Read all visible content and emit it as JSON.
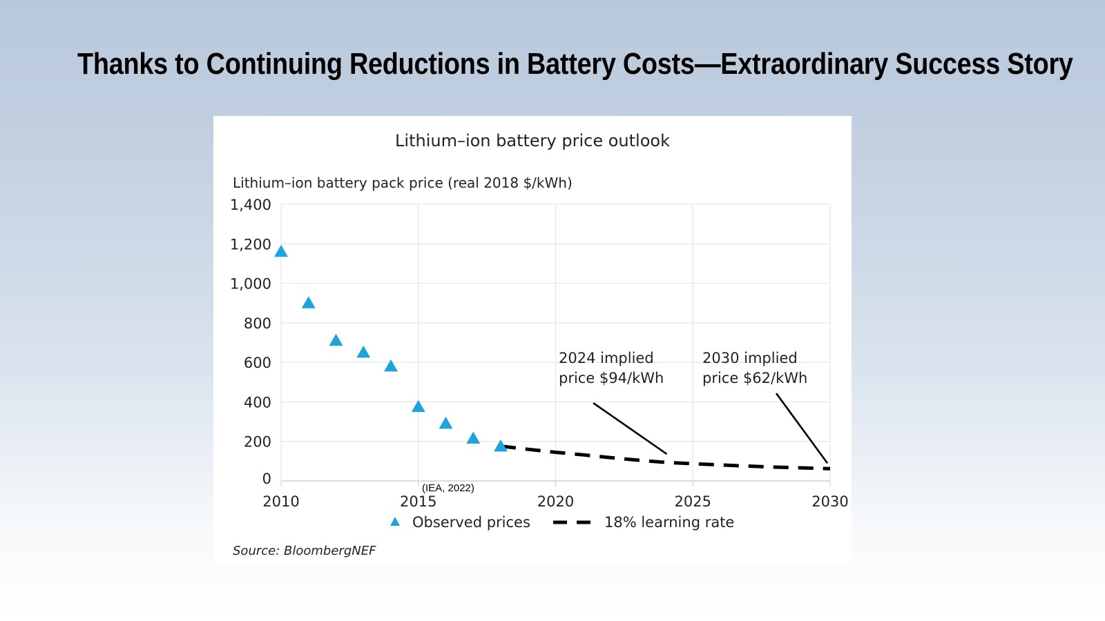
{
  "slide": {
    "title": "Thanks to Continuing Reductions in Battery Costs—Extraordinary Success Story",
    "citation": "(IEA, 2022)"
  },
  "chart_data": {
    "type": "scatter",
    "title": "Lithium–ion battery price outlook",
    "ylabel": "Lithium–ion battery pack price (real 2018 $/kWh)",
    "xlabel": "",
    "xlim": [
      2010,
      2030
    ],
    "ylim": [
      0,
      1400
    ],
    "x_ticks": [
      2010,
      2015,
      2020,
      2025,
      2030
    ],
    "x_tick_labels": [
      "2010",
      "2015",
      "2020",
      "2025",
      "2030"
    ],
    "y_ticks": [
      0,
      200,
      400,
      600,
      800,
      1000,
      1200,
      1400
    ],
    "y_tick_labels": [
      "0",
      "200",
      "400",
      "600",
      "800",
      "1,000",
      "1,200",
      "1,400"
    ],
    "grid": true,
    "legend_position": "bottom",
    "series": [
      {
        "name": "Observed prices",
        "type": "scatter",
        "marker": "triangle",
        "color": "#1fa3dc",
        "x": [
          2010,
          2011,
          2012,
          2013,
          2014,
          2015,
          2016,
          2017,
          2018
        ],
        "values": [
          1160,
          900,
          710,
          650,
          580,
          375,
          290,
          215,
          175
        ]
      },
      {
        "name": "18% learning rate",
        "type": "line",
        "style": "dashed",
        "color": "#000000",
        "x": [
          2018,
          2019,
          2020,
          2021,
          2022,
          2023,
          2024,
          2025,
          2026,
          2027,
          2028,
          2029,
          2030
        ],
        "values": [
          176,
          160,
          145,
          132,
          118,
          105,
          94,
          87,
          81,
          75,
          70,
          66,
          62
        ]
      }
    ],
    "annotations": [
      {
        "lines": [
          "2024 implied",
          "price $94/kWh"
        ],
        "x": 2024,
        "y": 94
      },
      {
        "lines": [
          "2030 implied",
          "price $62/kWh"
        ],
        "x": 2030,
        "y": 62
      }
    ],
    "source": "Source: BloombergNEF"
  }
}
